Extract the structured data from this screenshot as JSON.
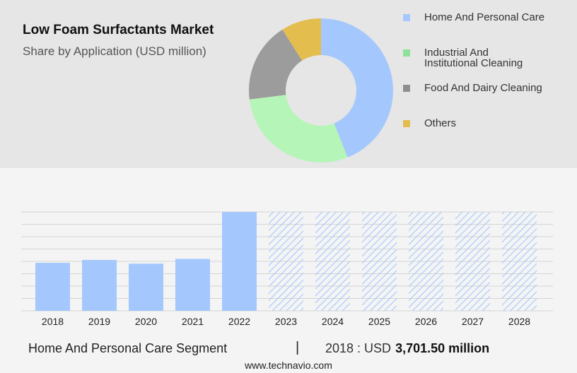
{
  "header": {
    "title": "Low Foam Surfactants Market",
    "subtitle": "Share by Application (USD million)"
  },
  "chart_data": [
    {
      "type": "pie",
      "style": "donut",
      "title": "Low Foam Surfactants Market",
      "subtitle": "Share by Application (USD million)",
      "legend_position": "right",
      "slices": [
        {
          "label": "Home And Personal Care",
          "value": 44,
          "color": "#a4c8fd"
        },
        {
          "label": "Industrial And Institutional Cleaning",
          "value": 29,
          "color": "#b5f5b8"
        },
        {
          "label": "Food And Dairy Cleaning",
          "value": 18,
          "color": "#9c9c9c"
        },
        {
          "label": "Others",
          "value": 9,
          "color": "#e4bd4f"
        }
      ]
    },
    {
      "type": "bar",
      "categories": [
        "2018",
        "2019",
        "2020",
        "2021",
        "2022",
        "2023",
        "2024",
        "2025",
        "2026",
        "2027",
        "2028"
      ],
      "values": [
        3701.5,
        3926,
        3640,
        4006,
        7628,
        7628,
        7628,
        7628,
        7628,
        7628,
        7628
      ],
      "forecast_from": "2023",
      "forecast_style": "hatched",
      "ylim": [
        0,
        7628
      ],
      "grid": true,
      "color": "#a4c8fd"
    }
  ],
  "legend": {
    "items": [
      {
        "label_line1": "Home And Personal Care",
        "label_line2": "",
        "color": "#a4c8fd"
      },
      {
        "label_line1": "Industrial And",
        "label_line2": "Institutional Cleaning",
        "color": "#8de19a"
      },
      {
        "label_line1": "Food And Dairy Cleaning",
        "label_line2": "",
        "color": "#8e8e8e"
      },
      {
        "label_line1": "Others",
        "label_line2": "",
        "color": "#e4bd4f"
      }
    ]
  },
  "footer": {
    "segment": "Home And Personal Care Segment",
    "separator": "|",
    "year_label": "2018 : USD",
    "value": "3,701.50 million",
    "source": "www.technavio.com"
  }
}
